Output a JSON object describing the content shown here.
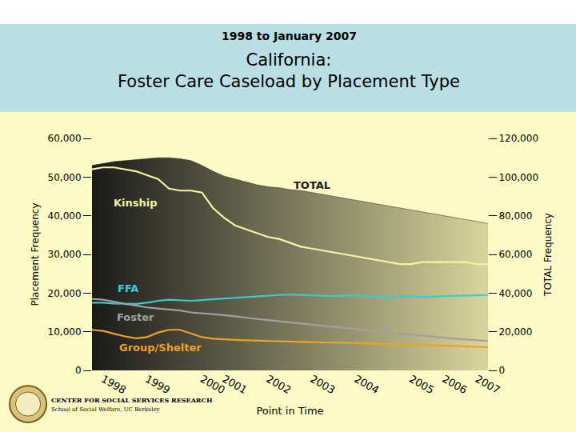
{
  "chart_data": {
    "type": "line",
    "subtitle": "1998 to January 2007",
    "title": [
      "California:",
      "Foster Care Caseload by Placement Type"
    ],
    "x_label": "Point in Time",
    "y_label": "Placement Frequency",
    "y2_label": "TOTAL Frequency",
    "source": [
      "CENTER FOR SOCIAL SERVICES RESEARCH",
      "School of Social Welfare, UC Berkeley"
    ],
    "categories": [
      null,
      "1998",
      null,
      null,
      null,
      "1999",
      null,
      null,
      null,
      null,
      "2000",
      null,
      "2001",
      null,
      null,
      null,
      "2002",
      null,
      null,
      null,
      "2003",
      null,
      null,
      null,
      "2004",
      null,
      null,
      null,
      null,
      "2005",
      null,
      null,
      "2006",
      null,
      null,
      "2007",
      null
    ],
    "ylim": [
      0,
      60000
    ],
    "yticks": [
      0,
      {
        "value": 10000,
        "label": "10,000"
      },
      {
        "value": 20000,
        "label": "20,000"
      },
      {
        "value": 30000,
        "label": "30,000"
      },
      {
        "value": 40000,
        "label": "40,000"
      },
      {
        "value": 50000,
        "label": "50,000"
      },
      {
        "value": 60000,
        "label": "60,000"
      }
    ],
    "y2lim": [
      0,
      120000
    ],
    "y2ticks": [
      0,
      {
        "value": 20000,
        "label": "20,000"
      },
      {
        "value": 40000,
        "label": "40,000"
      },
      {
        "value": 60000,
        "label": "60,000"
      },
      {
        "value": 80000,
        "label": "80,000"
      },
      {
        "value": 100000,
        "label": "100,000"
      },
      {
        "value": 120000,
        "label": "120,000"
      }
    ],
    "grid": false,
    "series": [
      {
        "name": "TOTAL",
        "type": "area",
        "axis": "y2",
        "color": "#1a1a1a",
        "values": [
          106000,
          107000,
          108000,
          108500,
          109000,
          109500,
          110000,
          110000,
          109500,
          108500,
          106000,
          103000,
          100500,
          99000,
          97500,
          96000,
          95000,
          94500,
          93500,
          93000,
          92000,
          91000,
          90000,
          89000,
          88000,
          87000,
          86000,
          85000,
          84000,
          83000,
          82000,
          81000,
          80000,
          79000,
          78000,
          77000,
          76000
        ]
      },
      {
        "name": "Kinship",
        "type": "line",
        "color": "#f7f2a0",
        "values": [
          52000,
          52500,
          52500,
          52000,
          51500,
          50500,
          49500,
          47000,
          46500,
          46500,
          46000,
          42000,
          39500,
          37500,
          36500,
          35500,
          34500,
          34000,
          33000,
          32000,
          31500,
          31000,
          30500,
          30000,
          29500,
          29000,
          28500,
          28000,
          27500,
          27500,
          28000,
          28000,
          28000,
          28000,
          28000,
          27500,
          27500
        ]
      },
      {
        "name": "FFA",
        "type": "line",
        "color": "#3ec9cc",
        "values": [
          17500,
          17500,
          17300,
          17200,
          17200,
          17500,
          18000,
          18300,
          18200,
          18000,
          18200,
          18400,
          18600,
          18800,
          19000,
          19100,
          19300,
          19500,
          19600,
          19500,
          19400,
          19300,
          19200,
          19300,
          19400,
          19200,
          19000,
          18800,
          19200,
          19100,
          19000,
          19000,
          19200,
          19300,
          19400,
          19400,
          19500
        ]
      },
      {
        "name": "Foster",
        "type": "line",
        "color": "#a0a0a0",
        "values": [
          18500,
          18300,
          17800,
          17200,
          16800,
          16300,
          16000,
          15800,
          15500,
          15000,
          14800,
          14600,
          14300,
          14000,
          13600,
          13300,
          13000,
          12700,
          12400,
          12100,
          11800,
          11500,
          11200,
          10900,
          10600,
          10300,
          10000,
          9800,
          9500,
          9300,
          9000,
          8700,
          8500,
          8200,
          8000,
          7800,
          7600
        ]
      },
      {
        "name": "Group/Shelter",
        "type": "line",
        "color": "#f0a020",
        "values": [
          10500,
          10200,
          9500,
          8800,
          8300,
          8600,
          9800,
          10500,
          10500,
          9500,
          8600,
          8200,
          8000,
          7900,
          7800,
          7700,
          7600,
          7500,
          7500,
          7400,
          7300,
          7200,
          7200,
          7100,
          7000,
          7000,
          6900,
          6800,
          6800,
          6700,
          6600,
          6500,
          6400,
          6300,
          6200,
          6100,
          6000
        ]
      }
    ]
  }
}
